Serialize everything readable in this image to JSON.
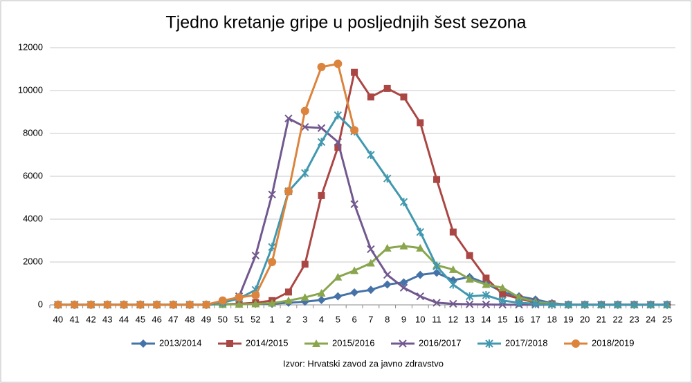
{
  "chart_data": {
    "type": "line",
    "title": "Tjedno kretanje gripe u posljednjih šest sezona",
    "source": "Izvor: Hrvatski zavod za javno zdravstvo",
    "categories": [
      "40",
      "41",
      "42",
      "43",
      "44",
      "45",
      "46",
      "47",
      "48",
      "49",
      "50",
      "51",
      "52",
      "1",
      "2",
      "3",
      "4",
      "5",
      "6",
      "7",
      "8",
      "9",
      "10",
      "11",
      "12",
      "13",
      "14",
      "15",
      "16",
      "17",
      "18",
      "19",
      "20",
      "21",
      "22",
      "23",
      "24",
      "25"
    ],
    "ylim": [
      0,
      12000
    ],
    "yticks": [
      0,
      2000,
      4000,
      6000,
      8000,
      10000,
      12000
    ],
    "grid": true,
    "legend": "bottom",
    "series": [
      {
        "name": "2013/2014",
        "color": "#4572a7",
        "marker": "diamond",
        "values": [
          10,
          10,
          10,
          10,
          10,
          10,
          10,
          10,
          10,
          10,
          30,
          40,
          50,
          50,
          100,
          150,
          230,
          400,
          580,
          700,
          950,
          1050,
          1400,
          1500,
          1150,
          1300,
          1000,
          600,
          400,
          250,
          80,
          10,
          10,
          10,
          10,
          10,
          10,
          10
        ]
      },
      {
        "name": "2014/2015",
        "color": "#aa4643",
        "marker": "square",
        "values": [
          10,
          10,
          10,
          10,
          10,
          10,
          10,
          10,
          10,
          10,
          30,
          50,
          100,
          200,
          600,
          1900,
          5100,
          7350,
          10850,
          9700,
          10100,
          9700,
          8500,
          5850,
          3400,
          2300,
          1250,
          500,
          300,
          100,
          50,
          10,
          10,
          10,
          10,
          10,
          10,
          10
        ]
      },
      {
        "name": "2015/2016",
        "color": "#89a54e",
        "marker": "triangle",
        "values": [
          10,
          10,
          10,
          10,
          10,
          10,
          10,
          10,
          10,
          10,
          20,
          30,
          50,
          80,
          200,
          350,
          550,
          1300,
          1600,
          1950,
          2650,
          2750,
          2650,
          1850,
          1650,
          1200,
          950,
          800,
          350,
          150,
          50,
          10,
          10,
          10,
          10,
          10,
          10,
          10
        ]
      },
      {
        "name": "2016/2017",
        "color": "#71588f",
        "marker": "x",
        "values": [
          10,
          10,
          10,
          10,
          10,
          10,
          10,
          10,
          10,
          10,
          100,
          400,
          2300,
          5150,
          8700,
          8300,
          8250,
          7600,
          4700,
          2600,
          1400,
          800,
          400,
          100,
          50,
          30,
          20,
          10,
          10,
          10,
          10,
          10,
          10,
          10,
          10,
          10,
          10,
          10
        ]
      },
      {
        "name": "2017/2018",
        "color": "#4198af",
        "marker": "star",
        "values": [
          10,
          10,
          10,
          10,
          10,
          10,
          10,
          10,
          10,
          10,
          100,
          300,
          700,
          2700,
          5300,
          6150,
          7600,
          8850,
          8100,
          7000,
          5900,
          4800,
          3400,
          1800,
          950,
          400,
          450,
          200,
          100,
          50,
          10,
          10,
          10,
          10,
          10,
          10,
          10,
          10
        ]
      },
      {
        "name": "2018/2019",
        "color": "#db843d",
        "marker": "circle",
        "values": [
          10,
          10,
          10,
          10,
          10,
          10,
          10,
          10,
          10,
          10,
          200,
          350,
          450,
          2000,
          5300,
          9050,
          11100,
          11250,
          8150,
          null,
          null,
          null,
          null,
          null,
          null,
          null,
          null,
          null,
          null,
          null,
          null,
          null,
          null,
          null,
          null,
          null,
          null,
          null
        ]
      }
    ]
  }
}
